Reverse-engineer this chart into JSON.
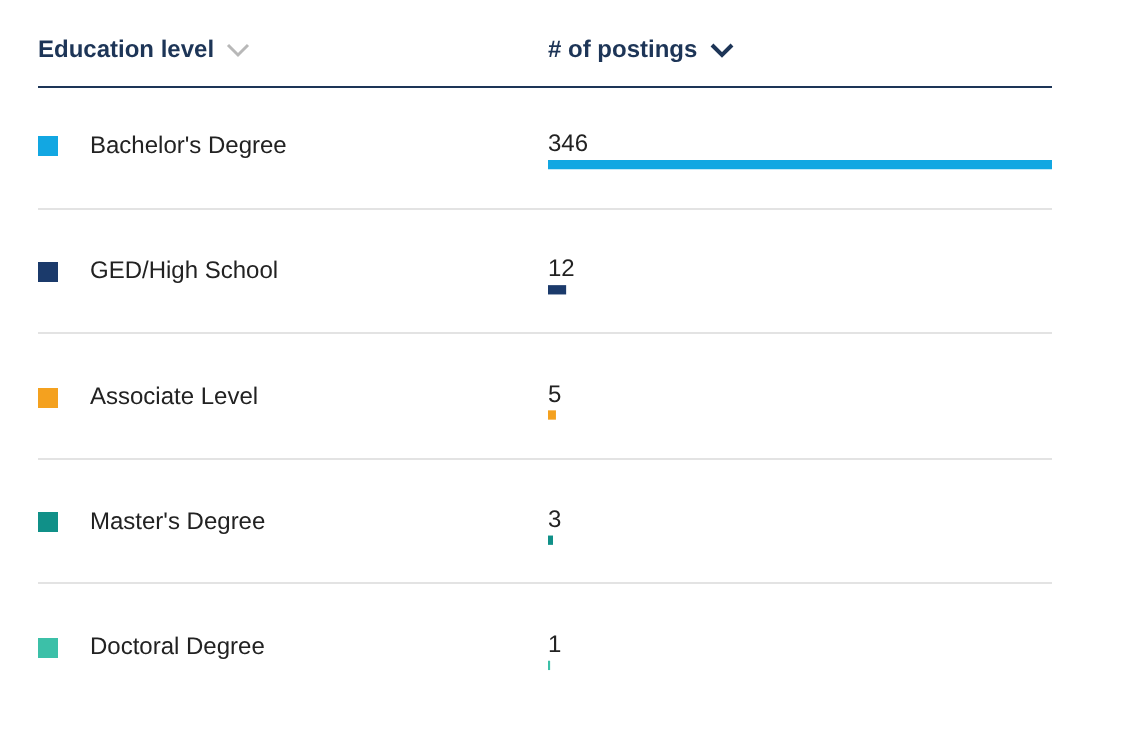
{
  "chart_data": {
    "type": "bar",
    "orientation": "horizontal",
    "ylabel": "Education level",
    "xlabel": "# of postings",
    "categories": [
      "Bachelor's Degree",
      "GED/High School",
      "Associate Level",
      "Master's Degree",
      "Doctoral Degree"
    ],
    "values": [
      346,
      12,
      5,
      3,
      1
    ],
    "colors": [
      "#12a7e2",
      "#1b3a6b",
      "#f4a11f",
      "#109088",
      "#3cc0a8"
    ],
    "data_labels": true,
    "tick_labels": "y",
    "legend": false
  }
}
